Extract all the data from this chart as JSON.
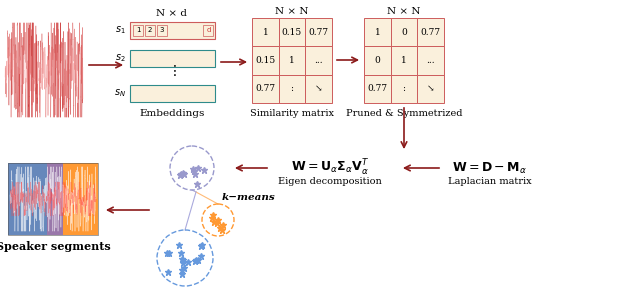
{
  "bg_color": "#ffffff",
  "arrow_color": "#8B1A1A",
  "matrix_bg": "#FAF0DC",
  "matrix_border": "#CD5C5C",
  "embed_border_teal": "#2E8B8B",
  "embed_border_red": "#CD5C5C",
  "embed_bg": "#FAF0DC",
  "cluster1_color": "#9999CC",
  "cluster2_color": "#6699DD",
  "cluster3_color": "#FF9933",
  "similarity_values": [
    [
      "1",
      "0.15",
      "0.77"
    ],
    [
      "0.15",
      "1",
      "..."
    ],
    [
      "0.77",
      ":",
      "↘"
    ]
  ],
  "pruned_values": [
    [
      "1",
      "0",
      "0.77"
    ],
    [
      "0",
      "1",
      "..."
    ],
    [
      "0.77",
      ":",
      "↘"
    ]
  ],
  "label_embeddings": "Embeddings",
  "label_similarity": "Similarity matrix",
  "label_pruned": "Pruned & Symmetrized",
  "label_laplacian": "Laplacian matrix",
  "label_eigen": "Eigen decomposition",
  "label_kmeans": "k−means",
  "label_speaker": "Speaker segments",
  "label_Nd": "N × d",
  "label_NN1": "N × N",
  "label_NN2": "N × N"
}
